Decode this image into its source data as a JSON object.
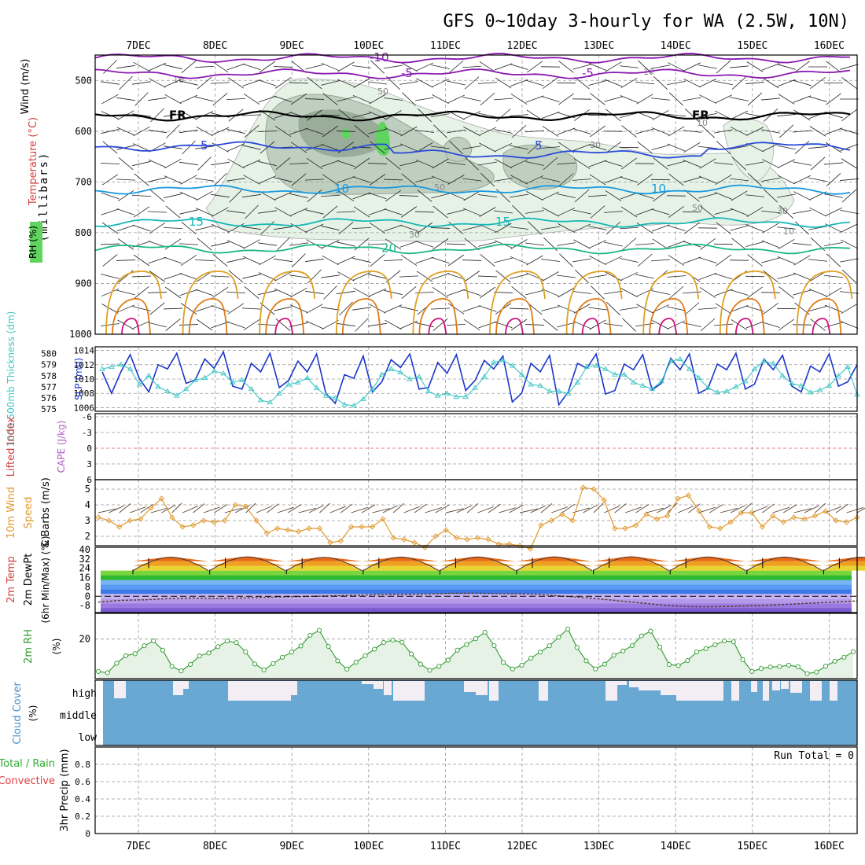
{
  "chart_data": {
    "type": "meteogram",
    "title": "GFS 0~10day 3-hourly for WA (2.5W, 10N)",
    "x_dates": [
      "7DEC",
      "8DEC",
      "9DEC",
      "10DEC",
      "11DEC",
      "12DEC",
      "13DEC",
      "14DEC",
      "15DEC",
      "16DEC"
    ],
    "colors": {
      "panel_bg": "#ffffff",
      "grid": "#999999",
      "rh_light": "#e5f2e5",
      "rh_mid": "#bfcfbf",
      "rh_dark": "#9aad9a",
      "rh_green": "#5fd45f",
      "temp_purple": "#8a1ab0",
      "temp_freeze": "#000000",
      "temp_blue": "#2a4ad8",
      "temp_ltblue": "#1a9ae0",
      "temp_teal": "#17b8b8",
      "temp_green": "#1ab889",
      "temp_orange": "#e0a020",
      "temp_darkorange": "#e07a10",
      "temp_magenta": "#d0107a",
      "slp": "#1b36c8",
      "thickness": "#3fc6c6",
      "wind_speed": "#e09a30",
      "wind_barb": "#5a4636",
      "rh2m_line": "#2f9a2f",
      "rh2m_fill": "#e6f2e6",
      "rh2m_fill_dark": "#c6dcc6",
      "cloud": "#6aa8d4",
      "cloud_gap": "#f2eef4",
      "lifted_zero": "#e05050"
    },
    "panels": [
      {
        "id": "upper_air",
        "type": "contour",
        "ylabel": "(millibars)",
        "legend_labels": [
          "Wind (m/s)",
          "Temperature (°C)",
          "RH (%)"
        ],
        "y_ticks": [
          500,
          600,
          700,
          800,
          900,
          1000
        ],
        "y_range": [
          450,
          1000
        ],
        "temperature_isotherms": [
          {
            "label": "-10",
            "base": 456
          },
          {
            "label": "-5",
            "base": 487
          },
          {
            "label": "FR",
            "base": 570
          },
          {
            "label": "5",
            "base": 630
          },
          {
            "label": "10",
            "base": 715
          },
          {
            "label": "15",
            "base": 780
          },
          {
            "label": "20",
            "base": 832
          }
        ],
        "rh_contour_labels": [
          "10",
          "30",
          "50"
        ]
      },
      {
        "id": "slp_thickness",
        "type": "line",
        "ylabel_left": "1000-500mb Thickness (dm)",
        "ylabel_right": "SLP (mb)",
        "thickness_ticks": [
          "580",
          "579",
          "578",
          "577",
          "576",
          "575"
        ],
        "slp_ticks": [
          "1014",
          "1012",
          "1010",
          "1008",
          "1006"
        ],
        "thickness_range": [
          574.8,
          580.6
        ],
        "slp_range": [
          1005.5,
          1014.5
        ],
        "slp_series": [
          1011,
          1008,
          1011,
          1013.4,
          1010,
          1008.2,
          1012,
          1011.4,
          1013.6,
          1009.4,
          1009.9,
          1012.8,
          1011.5,
          1013.8,
          1009,
          1008.6,
          1012.2,
          1011,
          1013.6,
          1008.8,
          1009.8,
          1012.5,
          1011,
          1013.5,
          1008,
          1006.6,
          1010.6,
          1010.1,
          1013.2,
          1008.2,
          1009.6,
          1012.7,
          1011.6,
          1013.5,
          1008.6,
          1008.8,
          1012.3,
          1010.8,
          1013.4,
          1008.4,
          1009.8,
          1012.6,
          1011.4,
          1013.2,
          1006.8,
          1008,
          1012.2,
          1011,
          1013.3,
          1006.4,
          1008.2,
          1012.2,
          1011.5,
          1013.5,
          1007.9,
          1008.4,
          1012.1,
          1011.3,
          1013.4,
          1008.5,
          1009.4,
          1012.9,
          1011.3,
          1013.5,
          1008,
          1008.7,
          1012.1,
          1011.3,
          1013.6,
          1008.6,
          1009.3,
          1012.8,
          1011.3,
          1013.3,
          1009,
          1008.2,
          1011.8,
          1011,
          1013.5,
          1009,
          1009.6,
          1012
        ],
        "thickness_series": [
          578.6,
          578.8,
          579,
          578.6,
          577.2,
          578,
          577,
          576.6,
          576.2,
          576.8,
          577.6,
          577.8,
          578.4,
          578.2,
          577.4,
          577.6,
          576.8,
          575.8,
          575.6,
          576.4,
          577.2,
          577.4,
          577.8,
          576.9,
          576.2,
          576,
          575.4,
          575.3,
          575.9,
          576.8,
          578.1,
          578.6,
          578.3,
          577.7,
          577.9,
          576.6,
          576.2,
          576.4,
          576.1,
          576.1,
          576.9,
          577.9,
          579.2,
          579.4,
          578.9,
          578.1,
          577.2,
          577.1,
          576.6,
          576.6,
          576.4,
          577.4,
          578.8,
          578.9,
          578.6,
          578.1,
          578.1,
          577.4,
          577.1,
          576.8,
          577.5,
          579.3,
          579.5,
          578.6,
          577.8,
          576.9,
          576.5,
          576.6,
          577,
          577.5,
          578.6,
          579.3,
          579.1,
          578,
          577.3,
          577.1,
          576.5,
          576.7,
          577.1,
          578,
          578.8,
          576.3
        ]
      },
      {
        "id": "cape_li",
        "type": "line",
        "ylabel_left": "Lifted Index",
        "ylabel_right": "CAPE (J/kg)",
        "y_ticks": [
          "-6",
          "-3",
          "0",
          "3",
          "6"
        ],
        "lifted_index_zero": 0
      },
      {
        "id": "wind10m",
        "type": "line",
        "ylabel_left": "10m Wind",
        "ylabel_mid": "Speed",
        "ylabel_right": "& Barbs (m/s)",
        "y_ticks": [
          "2",
          "3",
          "4",
          "5"
        ],
        "y_range": [
          1.4,
          5.6
        ],
        "speed_series": [
          3.2,
          3,
          2.6,
          3,
          3.1,
          3.8,
          4.4,
          3.2,
          2.6,
          2.7,
          3,
          2.9,
          3,
          4,
          3.9,
          3,
          2.2,
          2.5,
          2.4,
          2.3,
          2.5,
          2.5,
          1.6,
          1.7,
          2.6,
          2.6,
          2.6,
          3.1,
          1.9,
          1.8,
          1.6,
          1.3,
          2,
          2.4,
          1.9,
          1.8,
          1.9,
          1.8,
          1.5,
          1.5,
          1.4,
          1.2,
          2.7,
          3,
          3.4,
          3,
          5.1,
          5,
          4.3,
          2.5,
          2.5,
          2.7,
          3.4,
          3.1,
          3.3,
          4.4,
          4.6,
          3.6,
          2.6,
          2.5,
          2.9,
          3.5,
          3.5,
          2.6,
          3.3,
          2.9,
          3.2,
          3.1,
          3.3,
          3.6,
          3,
          2.9,
          3.2
        ]
      },
      {
        "id": "temp2m",
        "type": "area",
        "ylabel_left": "2m Temp",
        "ylabel_mid": "2m DewPt",
        "ylabel_right": "(6hr Min/Max) (°C)",
        "y_ticks": [
          "40",
          "32",
          "24",
          "16",
          "8",
          "0",
          "-8"
        ],
        "y_range": [
          -14,
          42
        ],
        "temp_max_days": [
          33.5,
          33.8,
          33.4,
          33.6,
          33.7,
          33.8,
          33.9,
          33.7,
          33.6,
          33.5
        ],
        "temp_min_days": [
          21.5,
          21.4,
          21.6,
          21.5,
          21.4,
          21.4,
          21.5,
          21.4,
          21.5,
          21.5
        ],
        "dewpoint_series": [
          -5,
          -3.5,
          -3,
          -2,
          -1.5,
          -2,
          -1.5,
          -1,
          -0.5,
          0,
          0.5,
          1,
          1.5,
          1.5,
          2,
          2.5,
          2.5,
          2.2,
          2,
          1,
          -0.5,
          -2,
          -4,
          -6,
          -8,
          -9,
          -9,
          -8.5,
          -8,
          -7,
          -6,
          -5,
          -4
        ]
      },
      {
        "id": "rh2m",
        "type": "line",
        "ylabel_left": "2m RH",
        "ylabel_right": "(%)",
        "y_ticks": [
          "20"
        ],
        "y_range": [
          0,
          33
        ],
        "series": [
          3.6,
          3,
          7.8,
          11.6,
          12.6,
          16.6,
          19.1,
          14.4,
          6.2,
          3.9,
          7.2,
          11.5,
          13,
          16.2,
          19,
          18.2,
          13.5,
          7.4,
          4.4,
          7.6,
          10.8,
          13.4,
          16.5,
          21.9,
          24.4,
          16.3,
          9,
          4.8,
          8.3,
          11.6,
          14.9,
          18.3,
          19.5,
          18.4,
          12.5,
          7.3,
          4.2,
          6.2,
          9.3,
          14.4,
          17.2,
          20.2,
          23.4,
          16.7,
          8.2,
          4.9,
          6.8,
          10.4,
          13.4,
          16.6,
          20.9,
          25.1,
          15.8,
          9,
          4.9,
          7.3,
          11.8,
          14,
          16.7,
          21.6,
          24,
          16,
          7.1,
          6.6,
          9.1,
          13.5,
          15.2,
          17.1,
          19.1,
          18.6,
          9.6,
          3.6,
          5.1,
          5.9,
          6.1,
          6.8,
          6,
          2.6,
          3.3,
          6.3,
          8.8,
          10.8,
          13.6
        ]
      },
      {
        "id": "cloud",
        "type": "area",
        "ylabel_left": "Cloud Cover",
        "ylabel_right": "(%)",
        "categories": [
          "high",
          "middle",
          "low"
        ]
      },
      {
        "id": "precip",
        "type": "bar",
        "ylabel_left": "Total / Rain",
        "ylabel_mid": "Convective",
        "ylabel_right": "3hr Precip (mm)",
        "y_ticks": [
          "0",
          "0.2",
          "0.4",
          "0.6",
          "0.8"
        ],
        "y_range": [
          0,
          1.0
        ],
        "run_total_label": "Run Total = 0",
        "values": []
      }
    ]
  }
}
